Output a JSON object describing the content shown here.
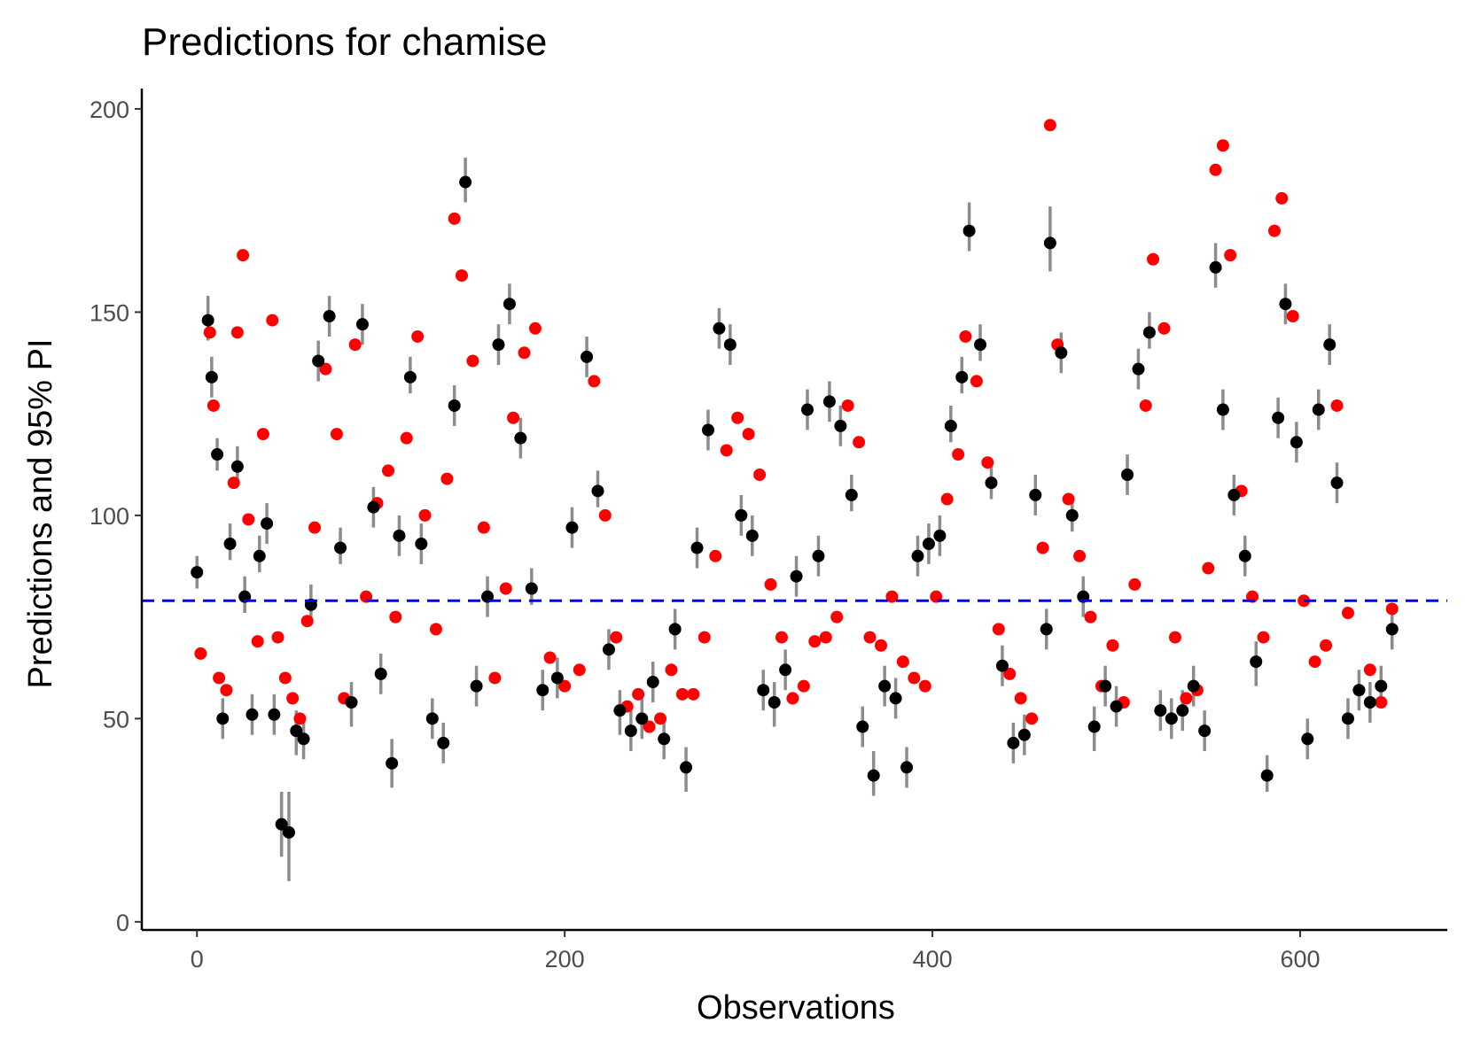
{
  "chart_data": {
    "type": "scatter",
    "title": "Predictions for chamise",
    "xlabel": "Observations",
    "ylabel": "Predictions and 95% PI",
    "xlim": [
      -30,
      680
    ],
    "ylim": [
      -2,
      205
    ],
    "x_ticks": [
      0,
      200,
      400,
      600
    ],
    "y_ticks": [
      0,
      50,
      100,
      150,
      200
    ],
    "reference_line": {
      "y": 79,
      "style": "dashed",
      "color": "#0000ff"
    },
    "grid": false,
    "legend": "none",
    "colors": {
      "predicted": "#000000",
      "observed": "#ff0000",
      "interval": "#808080"
    },
    "series": [
      {
        "role": "predicted",
        "x": [
          0,
          6,
          8,
          11,
          14,
          18,
          22,
          26,
          30,
          34,
          38,
          42,
          46,
          50,
          54,
          58,
          62,
          66,
          72,
          78,
          84,
          90,
          96,
          100,
          106,
          110,
          116,
          122,
          128,
          134,
          140,
          146,
          152,
          158,
          164,
          170,
          176,
          182,
          188,
          196,
          204,
          212,
          218,
          224,
          230,
          236,
          242,
          248,
          254,
          260,
          266,
          272,
          278,
          284,
          290,
          296,
          302,
          308,
          314,
          320,
          326,
          332,
          338,
          344,
          350,
          356,
          362,
          368,
          374,
          380,
          386,
          392,
          398,
          404,
          410,
          416,
          420,
          426,
          432,
          438,
          444,
          450,
          456,
          462,
          464,
          470,
          476,
          482,
          488,
          494,
          500,
          506,
          512,
          518,
          524,
          530,
          536,
          542,
          548,
          554,
          558,
          564,
          570,
          576,
          582,
          588,
          592,
          598,
          604,
          610,
          616,
          620,
          626,
          632,
          638,
          644,
          650
        ],
        "y": [
          86,
          148,
          134,
          115,
          50,
          93,
          112,
          80,
          51,
          90,
          98,
          51,
          24,
          22,
          47,
          45,
          78,
          138,
          149,
          92,
          54,
          147,
          102,
          61,
          39,
          95,
          134,
          93,
          50,
          44,
          127,
          182,
          58,
          80,
          142,
          152,
          119,
          82,
          57,
          60,
          97,
          139,
          106,
          67,
          52,
          47,
          50,
          59,
          45,
          72,
          38,
          92,
          121,
          146,
          142,
          100,
          95,
          57,
          54,
          62,
          85,
          126,
          90,
          128,
          122,
          105,
          48,
          36,
          58,
          55,
          38,
          90,
          93,
          95,
          122,
          134,
          170,
          142,
          108,
          63,
          44,
          46,
          105,
          72,
          167,
          140,
          100,
          80,
          48,
          58,
          53,
          110,
          136,
          145,
          52,
          50,
          52,
          58,
          47,
          161,
          126,
          105,
          90,
          64,
          36,
          124,
          152,
          118,
          45,
          126,
          142,
          108,
          50,
          57,
          54,
          58,
          72
        ],
        "lower": [
          82,
          143,
          129,
          111,
          45,
          89,
          107,
          76,
          46,
          86,
          93,
          46,
          16,
          10,
          41,
          40,
          73,
          133,
          144,
          88,
          48,
          142,
          97,
          56,
          33,
          90,
          130,
          88,
          45,
          39,
          122,
          177,
          53,
          75,
          137,
          147,
          114,
          78,
          52,
          55,
          92,
          134,
          102,
          62,
          46,
          42,
          45,
          54,
          40,
          67,
          32,
          87,
          116,
          141,
          137,
          95,
          90,
          52,
          48,
          57,
          80,
          121,
          85,
          123,
          117,
          101,
          43,
          31,
          53,
          50,
          33,
          85,
          88,
          90,
          118,
          130,
          165,
          138,
          104,
          58,
          39,
          41,
          100,
          67,
          160,
          135,
          96,
          75,
          42,
          53,
          48,
          105,
          131,
          141,
          47,
          45,
          47,
          53,
          42,
          156,
          121,
          100,
          85,
          58,
          32,
          119,
          147,
          113,
          40,
          121,
          137,
          103,
          45,
          52,
          49,
          53,
          67
        ],
        "upper": [
          90,
          154,
          139,
          119,
          55,
          98,
          117,
          85,
          56,
          95,
          103,
          56,
          32,
          32,
          52,
          50,
          83,
          143,
          154,
          97,
          59,
          152,
          107,
          66,
          45,
          100,
          139,
          98,
          55,
          49,
          132,
          188,
          63,
          85,
          147,
          157,
          124,
          87,
          62,
          65,
          102,
          144,
          111,
          72,
          57,
          52,
          55,
          64,
          50,
          77,
          43,
          97,
          126,
          151,
          147,
          105,
          100,
          62,
          59,
          67,
          90,
          131,
          95,
          133,
          127,
          110,
          53,
          42,
          63,
          60,
          43,
          95,
          98,
          100,
          127,
          139,
          177,
          147,
          113,
          68,
          49,
          51,
          110,
          77,
          176,
          145,
          105,
          85,
          53,
          63,
          58,
          115,
          141,
          150,
          57,
          55,
          57,
          63,
          52,
          167,
          131,
          110,
          95,
          69,
          41,
          129,
          157,
          123,
          50,
          131,
          147,
          113,
          55,
          62,
          59,
          63,
          77
        ]
      },
      {
        "role": "observed",
        "x": [
          2,
          7,
          9,
          12,
          16,
          20,
          22,
          25,
          28,
          33,
          36,
          41,
          44,
          48,
          52,
          56,
          60,
          64,
          70,
          76,
          80,
          86,
          92,
          98,
          104,
          108,
          114,
          120,
          124,
          130,
          136,
          140,
          144,
          150,
          156,
          162,
          168,
          172,
          178,
          184,
          192,
          200,
          208,
          216,
          222,
          228,
          234,
          240,
          246,
          252,
          258,
          264,
          270,
          276,
          282,
          288,
          294,
          300,
          306,
          312,
          318,
          324,
          330,
          336,
          342,
          348,
          354,
          360,
          366,
          372,
          378,
          384,
          390,
          396,
          402,
          408,
          414,
          418,
          424,
          430,
          436,
          442,
          448,
          454,
          460,
          464,
          468,
          474,
          480,
          486,
          492,
          498,
          504,
          510,
          516,
          520,
          526,
          532,
          538,
          544,
          550,
          554,
          558,
          562,
          568,
          574,
          580,
          586,
          590,
          596,
          602,
          608,
          614,
          620,
          626,
          632,
          638,
          644,
          650
        ],
        "y": [
          66,
          145,
          127,
          60,
          57,
          108,
          145,
          164,
          99,
          69,
          120,
          148,
          70,
          60,
          55,
          50,
          74,
          97,
          136,
          120,
          55,
          142,
          80,
          103,
          111,
          75,
          119,
          144,
          100,
          72,
          109,
          173,
          159,
          138,
          97,
          60,
          82,
          124,
          140,
          146,
          65,
          58,
          62,
          133,
          100,
          70,
          53,
          56,
          48,
          50,
          62,
          56,
          56,
          70,
          90,
          116,
          124,
          120,
          110,
          83,
          70,
          55,
          58,
          69,
          70,
          75,
          127,
          118,
          70,
          68,
          80,
          64,
          60,
          58,
          80,
          104,
          115,
          144,
          133,
          113,
          72,
          61,
          55,
          50,
          92,
          196,
          142,
          104,
          90,
          75,
          58,
          68,
          54,
          83,
          127,
          163,
          146,
          70,
          55,
          57,
          87,
          185,
          191,
          164,
          106,
          80,
          70,
          170,
          178,
          149,
          79,
          64,
          68,
          127,
          76,
          57,
          62,
          54,
          77
        ],
        "y_extra_labels": []
      }
    ]
  }
}
